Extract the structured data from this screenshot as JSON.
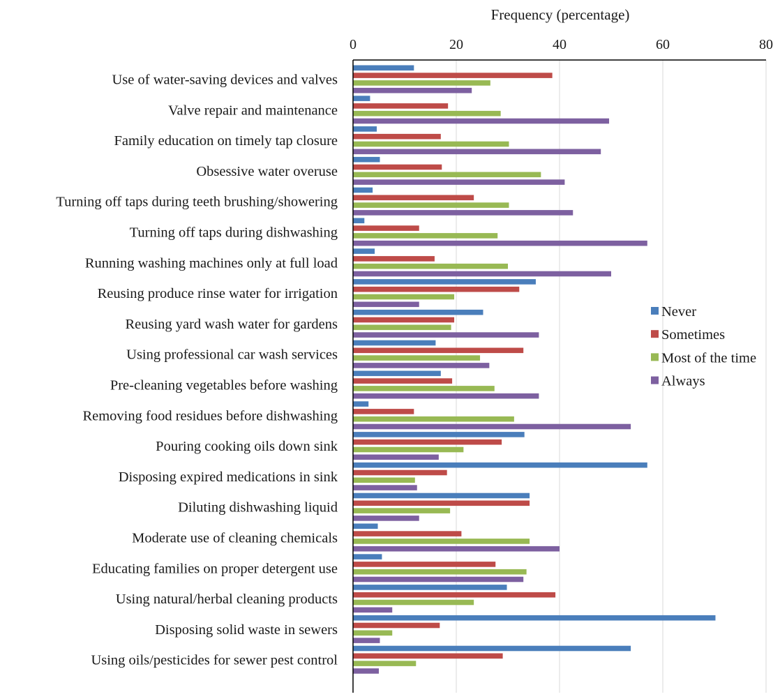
{
  "chart_data": {
    "type": "bar",
    "orientation": "horizontal",
    "title": "",
    "xlabel": "Frequency (percentage)",
    "ylabel": "",
    "xlim": [
      0,
      80
    ],
    "xticks": [
      0,
      20,
      40,
      60,
      80
    ],
    "x_axis_position": "top",
    "grid": true,
    "legend_position": "right",
    "categories": [
      "Use of water-saving devices and valves",
      "Valve repair and maintenance",
      "Family education on timely tap closure",
      "Obsessive water overuse",
      "Turning off taps during teeth brushing/showering",
      "Turning off taps during dishwashing",
      "Running washing machines only at full load",
      "Reusing produce rinse water for irrigation",
      "Reusing yard wash water for gardens",
      "Using professional car wash services",
      "Pre-cleaning vegetables before washing",
      "Removing food residues before dishwashing",
      "Pouring cooking oils down sink",
      "Disposing expired medications in sink",
      "Diluting dishwashing liquid",
      "Moderate use of cleaning chemicals",
      "Educating families on proper detergent use",
      "Using natural/herbal cleaning products",
      "Disposing solid waste in sewers",
      "Using oils/pesticides for sewer pest control"
    ],
    "series": [
      {
        "name": "Never",
        "color": "#4a7ebb",
        "values": [
          11.8,
          3.3,
          4.6,
          5.2,
          3.8,
          2.2,
          4.2,
          35.4,
          25.2,
          16.0,
          17.0,
          3.0,
          33.2,
          57.0,
          34.2,
          4.8,
          5.6,
          29.8,
          70.2,
          53.8
        ]
      },
      {
        "name": "Sometimes",
        "color": "#be4b48",
        "values": [
          38.6,
          18.4,
          17.0,
          17.2,
          23.4,
          12.8,
          15.8,
          32.2,
          19.6,
          33.0,
          19.2,
          11.8,
          28.8,
          18.2,
          34.2,
          21.0,
          27.6,
          39.2,
          16.8,
          29.0
        ]
      },
      {
        "name": "Most of the time",
        "color": "#98b954",
        "values": [
          26.6,
          28.6,
          30.2,
          36.4,
          30.2,
          28.0,
          30.0,
          19.6,
          19.0,
          24.6,
          27.4,
          31.2,
          21.4,
          12.0,
          18.8,
          34.2,
          33.6,
          23.4,
          7.6,
          12.2
        ]
      },
      {
        "name": "Always",
        "color": "#7d60a0",
        "values": [
          23.0,
          49.6,
          48.0,
          41.0,
          42.6,
          57.0,
          50.0,
          12.8,
          36.0,
          26.4,
          36.0,
          53.8,
          16.6,
          12.4,
          12.8,
          40.0,
          33.0,
          7.6,
          5.2,
          5.0
        ]
      }
    ]
  }
}
